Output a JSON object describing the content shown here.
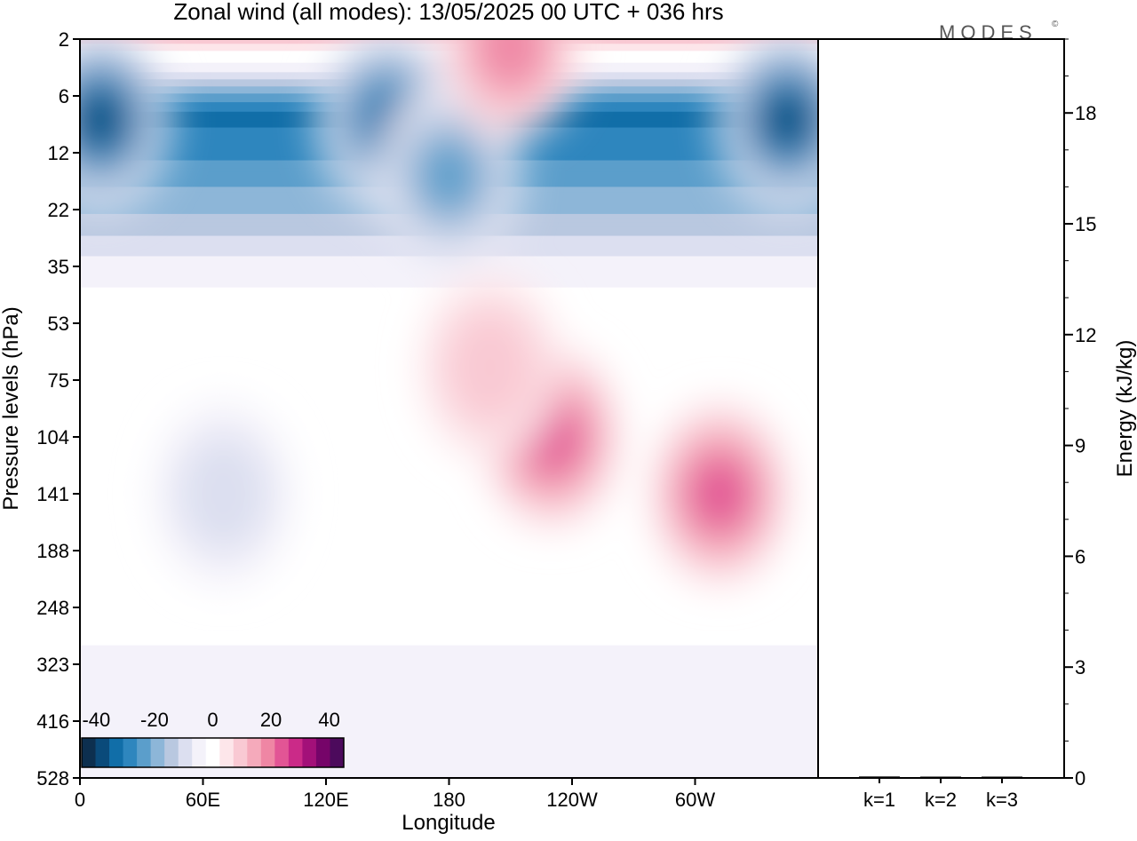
{
  "title": "Zonal wind (all modes):  13/05/2025  00 UTC  + 036 hrs",
  "brand": "MODES",
  "brand_mark": "©",
  "chart_data": [
    {
      "type": "heatmap",
      "title": "Zonal wind (all modes):  13/05/2025  00 UTC  + 036 hrs",
      "xlabel": "Longitude",
      "ylabel": "Pressure levels (hPa)",
      "x_ticks": [
        {
          "label": "0",
          "lon": 0
        },
        {
          "label": "60E",
          "lon": 60
        },
        {
          "label": "120E",
          "lon": 120
        },
        {
          "label": "180",
          "lon": 180
        },
        {
          "label": "120W",
          "lon": 240
        },
        {
          "label": "60W",
          "lon": 300
        }
      ],
      "xlim": [
        0,
        360
      ],
      "y_levels": [
        "2",
        "6",
        "12",
        "22",
        "35",
        "53",
        "75",
        "104",
        "141",
        "188",
        "248",
        "323",
        "416",
        "528"
      ],
      "y_scale": "categorical pressure levels, 2 hPa at top, 528 hPa at bottom",
      "colorbar": {
        "tick_labels": [
          "-40",
          "-20",
          "0",
          "20",
          "40"
        ],
        "range": [
          -45,
          45
        ],
        "step": 5,
        "colors": [
          "#0d2f4f",
          "#0a4a7a",
          "#116ea8",
          "#2e86be",
          "#5b9ecb",
          "#8db6d8",
          "#b9c8e0",
          "#dcdff0",
          "#f4f2fa",
          "#ffffff",
          "#fde6ea",
          "#f9c9d3",
          "#f5aabb",
          "#ef86a4",
          "#e25595",
          "#cb2a88",
          "#a31079",
          "#760469",
          "#4c0a5c"
        ]
      },
      "grid": false,
      "legend_position": "bottom-left",
      "features": [
        {
          "lon": 10,
          "level": 8.5,
          "value": -40
        },
        {
          "lon": 150,
          "level": 8.5,
          "value": -35
        },
        {
          "lon": 345,
          "level": 8.5,
          "value": -40
        },
        {
          "lon": 180,
          "level": 16,
          "value": -28
        },
        {
          "lon": 70,
          "level": 141,
          "value": -12
        },
        {
          "lon": 230,
          "level": 104,
          "value": 25
        },
        {
          "lon": 312,
          "level": 141,
          "value": 26
        },
        {
          "lon": 200,
          "level": 70,
          "value": 12
        },
        {
          "lon": 210,
          "level": 2.5,
          "value": 24
        }
      ]
    },
    {
      "type": "bar",
      "categories": [
        "k=1",
        "k=2",
        "k=3"
      ],
      "values": [
        0.04,
        0.03,
        0.02
      ],
      "ylabel": "Energy (kJ/kg)",
      "ylim": [
        0,
        20
      ],
      "y_ticks": [
        0,
        3,
        6,
        9,
        12,
        15,
        18
      ],
      "grid": false
    }
  ]
}
